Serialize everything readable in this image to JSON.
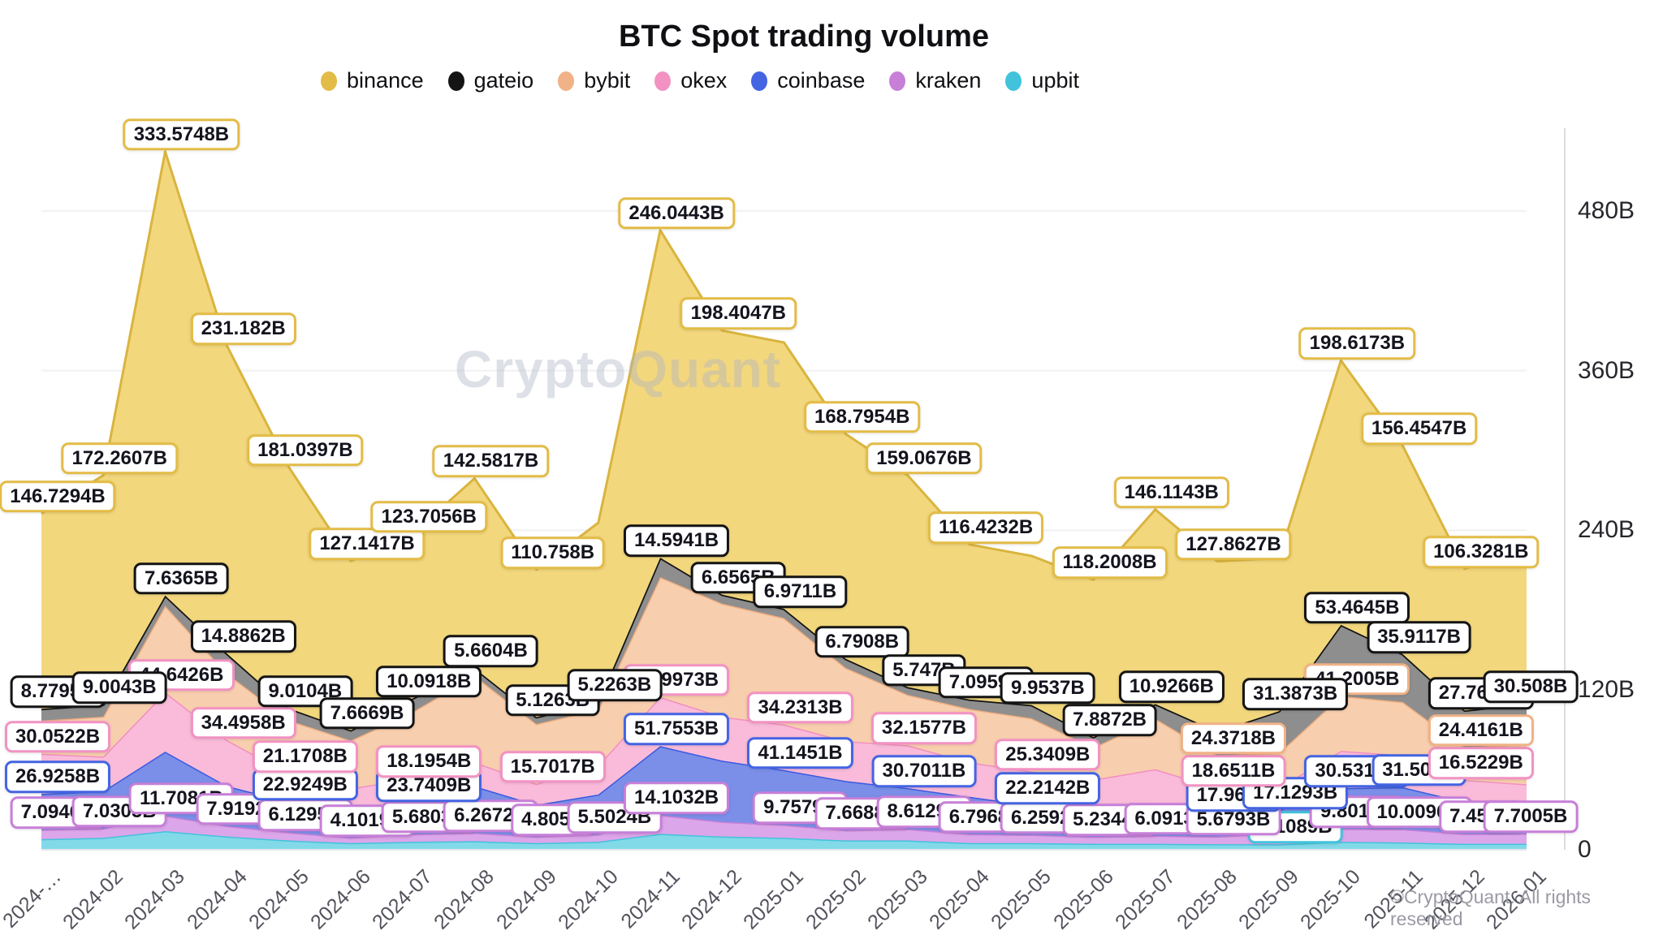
{
  "title": "BTC Spot trading volume",
  "watermark": "CryptoQuant",
  "copyright": "©CryptoQuant. All rights reserved",
  "chart_data": {
    "type": "area",
    "stacked": true,
    "unit": "B",
    "title": "BTC Spot trading volume",
    "legend_position": "top",
    "grid": "horizontal",
    "y_axis_side": "right",
    "y_max": 545,
    "y_ticks": [
      {
        "label": "480B",
        "value": 480
      },
      {
        "label": "360B",
        "value": 360
      },
      {
        "label": "240B",
        "value": 240
      },
      {
        "label": "120B",
        "value": 120
      },
      {
        "label": "0",
        "value": 0
      }
    ],
    "categories": [
      "2024-01",
      "2024-02",
      "2024-03",
      "2024-04",
      "2024-05",
      "2024-06",
      "2024-07",
      "2024-08",
      "2024-09",
      "2024-10",
      "2024-11",
      "2024-12",
      "2025-01",
      "2025-02",
      "2025-03",
      "2025-04",
      "2025-05",
      "2025-06",
      "2025-07",
      "2025-08",
      "2025-09",
      "2025-10",
      "2025-11",
      "2025-12",
      "2026-01"
    ],
    "x_tick_labels": [
      "2024-…",
      "2024-02",
      "2024-03",
      "2024-04",
      "2024-05",
      "2024-06",
      "2024-07",
      "2024-08",
      "2024-09",
      "2024-10",
      "2024-11",
      "2024-12",
      "2025-01",
      "2025-02",
      "2025-03",
      "2025-04",
      "2025-05",
      "2025-06",
      "2025-07",
      "2025-08",
      "2025-09",
      "2025-10",
      "2025-11",
      "2025-12",
      "2026-01"
    ],
    "stack_order": [
      "upbit",
      "kraken",
      "coinbase",
      "okex",
      "bybit",
      "gateio",
      "binance"
    ],
    "series": [
      {
        "name": "binance",
        "color": "#E3BC47",
        "fill": "#F2D77D",
        "stroke": "#D9B43F",
        "values": [
          146.7294,
          172.2607,
          333.5748,
          231.182,
          181.0397,
          127.1417,
          123.7056,
          142.5817,
          110.758,
          135,
          246.0443,
          198.4047,
          200,
          168.7954,
          159.0676,
          116.4232,
          112,
          118.2008,
          146.1143,
          127.8627,
          115,
          198.6173,
          156.4547,
          106.3281,
          118
        ],
        "labeled_points": [
          0,
          1,
          2,
          3,
          4,
          5,
          6,
          7,
          8,
          10,
          11,
          13,
          14,
          15,
          17,
          18,
          19,
          21,
          22,
          23
        ]
      },
      {
        "name": "gateio",
        "color": "#141414",
        "fill": "#8E8E8E",
        "stroke": "#141414",
        "values": [
          8.7795,
          9.0043,
          7.6365,
          14.8862,
          9.0104,
          7.6669,
          10.0918,
          5.6604,
          5.1263,
          5.2263,
          14.5941,
          6.6565,
          6.9711,
          6.7908,
          5.747,
          7.0959,
          9.9537,
          7.8872,
          10.9266,
          18,
          31.3873,
          53.4645,
          35.9117,
          27.7674,
          30.508
        ],
        "labeled_points": [
          0,
          1,
          2,
          3,
          4,
          5,
          6,
          7,
          8,
          9,
          10,
          11,
          12,
          13,
          14,
          15,
          16,
          17,
          18,
          20,
          21,
          22,
          23,
          24
        ]
      },
      {
        "name": "bybit",
        "color": "#F0B286",
        "fill": "#F8CFAE",
        "stroke": "#EFAD7F",
        "values": [
          25,
          30,
          65,
          50,
          40,
          36,
          50,
          65,
          45,
          42,
          90,
          85,
          80,
          55,
          38,
          40,
          40,
          24,
          38,
          24.3718,
          26,
          41.2005,
          40,
          24.4161,
          30
        ],
        "labeled_points": [
          19,
          21,
          23
        ]
      },
      {
        "name": "okex",
        "color": "#F292C3",
        "fill": "#F9BBD9",
        "stroke": "#F28FC1",
        "values": [
          30.0522,
          26,
          44.6426,
          34.4958,
          21.1708,
          17,
          18.1954,
          18,
          15.7017,
          22,
          36.9973,
          33,
          34.2313,
          30,
          32.1577,
          26,
          25.3409,
          24,
          26,
          18.6511,
          17,
          28,
          24,
          16.5229,
          17
        ],
        "labeled_points": [
          0,
          2,
          3,
          4,
          6,
          8,
          10,
          12,
          14,
          16,
          19,
          23
        ]
      },
      {
        "name": "coinbase",
        "color": "#4464E2",
        "fill": "#7B8FE9",
        "stroke": "#3A5BE0",
        "values": [
          26.9258,
          28,
          48,
          30,
          22.9249,
          20,
          23.7409,
          35,
          24,
          30,
          51.7553,
          46,
          41.1451,
          37,
          30.7011,
          28,
          22.2142,
          19,
          24,
          17.961,
          17.1293,
          30.5319,
          31.507,
          24,
          20
        ],
        "labeled_points": [
          0,
          4,
          6,
          10,
          12,
          14,
          16,
          19,
          20,
          21,
          22
        ]
      },
      {
        "name": "kraken",
        "color": "#C77FD8",
        "fill": "#DCA6EA",
        "stroke": "#C77FD8",
        "values": [
          7.0946,
          7.0305,
          11.7081,
          7.9192,
          6.1295,
          4.1019,
          5.6803,
          6.2672,
          4.805,
          5.5024,
          14.1032,
          11,
          9.7579,
          7.6688,
          8.6129,
          6.7968,
          6.2592,
          5.2344,
          6.0913,
          5.6793,
          8.5,
          9.8018,
          10.0096,
          7.453,
          7.7005
        ],
        "labeled_points": [
          0,
          1,
          2,
          3,
          4,
          5,
          6,
          7,
          8,
          9,
          10,
          12,
          13,
          14,
          15,
          16,
          17,
          18,
          19,
          21,
          22,
          23,
          24
        ]
      },
      {
        "name": "upbit",
        "color": "#42C3DB",
        "fill": "#82D9E8",
        "stroke": "#42C3DB",
        "values": [
          8,
          9,
          14,
          10,
          7,
          5,
          6,
          6.5,
          5,
          6,
          12,
          10,
          9,
          7,
          7,
          5,
          5,
          4.5,
          4.5,
          4.2,
          4.1089,
          6,
          5.5,
          4.5,
          4.5
        ],
        "labeled_points": [
          20
        ]
      }
    ]
  }
}
